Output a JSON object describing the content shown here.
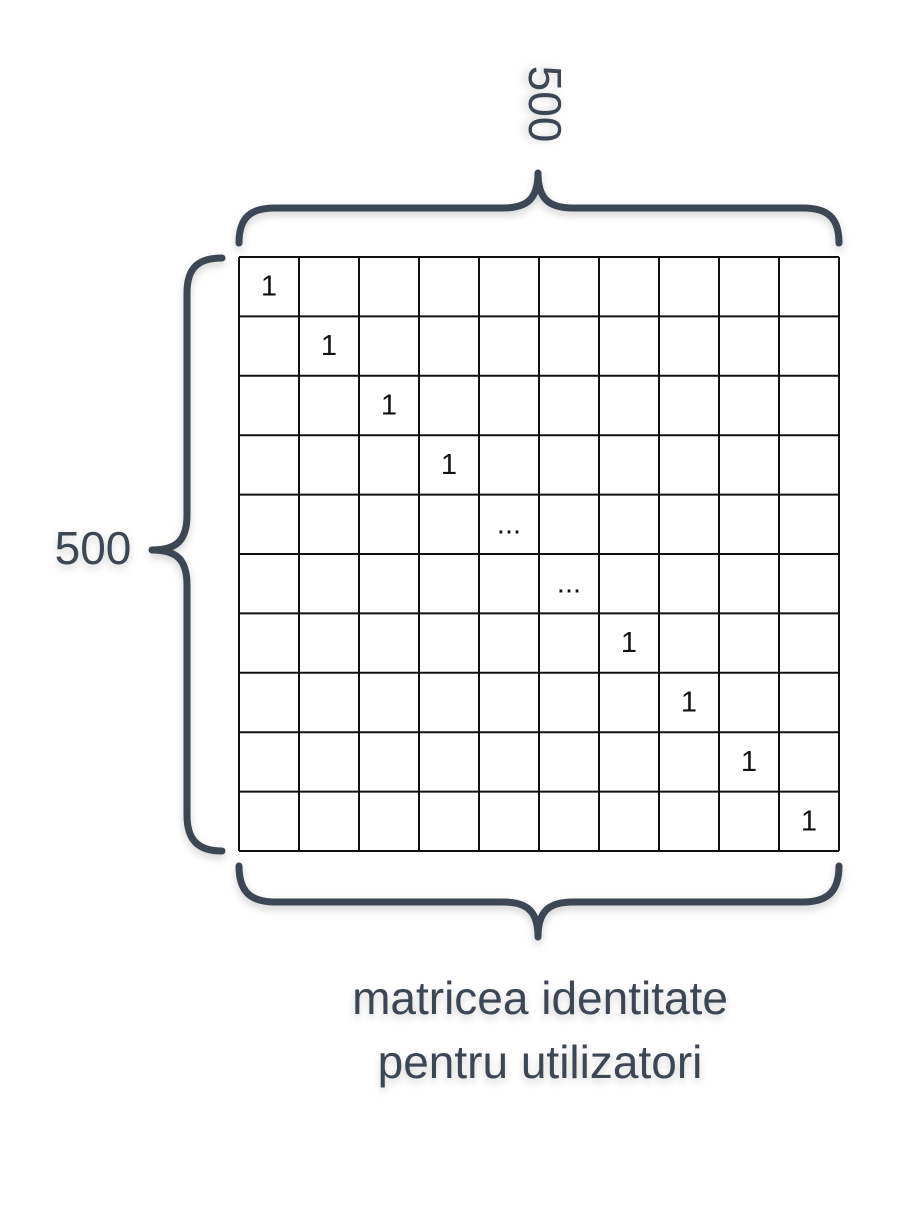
{
  "matrix": {
    "rows": 10,
    "cols": 10,
    "diagonal_values": [
      "1",
      "1",
      "1",
      "1",
      "...",
      "...",
      "1",
      "1",
      "1",
      "1"
    ]
  },
  "dimensions": {
    "cols_label": "500",
    "rows_label": "500"
  },
  "caption": {
    "line1": "matricea identitate",
    "line2": "pentru utilizatori"
  }
}
